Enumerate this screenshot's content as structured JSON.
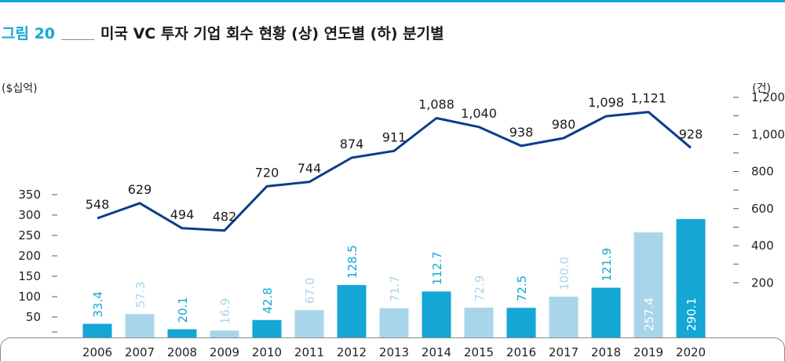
{
  "figure": {
    "number": "그림 20",
    "title": "미국 VC 투자 기업 회수 현황 (상) 연도별 (하) 분기별"
  },
  "colors": {
    "accent": "#14a6d4",
    "bar_dark": "#14a6d4",
    "bar_light": "#a9d5ea",
    "line": "#0b3d8c"
  },
  "chart_data": {
    "type": "bar",
    "categories": [
      "2006",
      "2007",
      "2008",
      "2009",
      "2010",
      "2011",
      "2012",
      "2013",
      "2014",
      "2015",
      "2016",
      "2017",
      "2018",
      "2019",
      "2020"
    ],
    "series": [
      {
        "values": [
          33.4,
          57.3,
          20.1,
          16.9,
          42.8,
          67.0,
          128.5,
          71.7,
          112.7,
          72.9,
          72.5,
          100.0,
          121.9,
          257.4,
          290.1
        ],
        "labels": [
          "33.4",
          "57.3",
          "20.1",
          "16.9",
          "42.8",
          "67.0",
          "128.5",
          "71.7",
          "112.7",
          "72.9",
          "72.5",
          "100.0",
          "121.9",
          "257.4",
          "290.1"
        ],
        "bar_shade": [
          "dark",
          "light",
          "dark",
          "light",
          "dark",
          "light",
          "dark",
          "light",
          "dark",
          "light",
          "dark",
          "light",
          "dark",
          "light",
          "dark"
        ],
        "axis": "left"
      },
      {
        "type": "line",
        "values": [
          548,
          629,
          494,
          482,
          720,
          744,
          874,
          911,
          1088,
          1040,
          938,
          980,
          1098,
          1121,
          928
        ],
        "labels": [
          "548",
          "629",
          "494",
          "482",
          "720",
          "744",
          "874",
          "911",
          "1,088",
          "1,040",
          "938",
          "980",
          "1,098",
          "1,121",
          "928"
        ],
        "axis": "right"
      }
    ],
    "y_left": {
      "unit": "($십억)",
      "ticks": [
        50,
        100,
        150,
        200,
        250,
        300,
        350
      ],
      "tick_labels": [
        "50",
        "100",
        "150",
        "200",
        "250",
        "300",
        "350"
      ],
      "range": [
        0,
        350
      ]
    },
    "y_right": {
      "unit": "(건)",
      "ticks": [
        200,
        400,
        600,
        800,
        1000,
        1200
      ],
      "tick_labels": [
        "200",
        "400",
        "600",
        "800",
        "1,000",
        "1,200"
      ],
      "range": [
        80,
        1200
      ]
    },
    "grid": false,
    "legend": "none"
  }
}
